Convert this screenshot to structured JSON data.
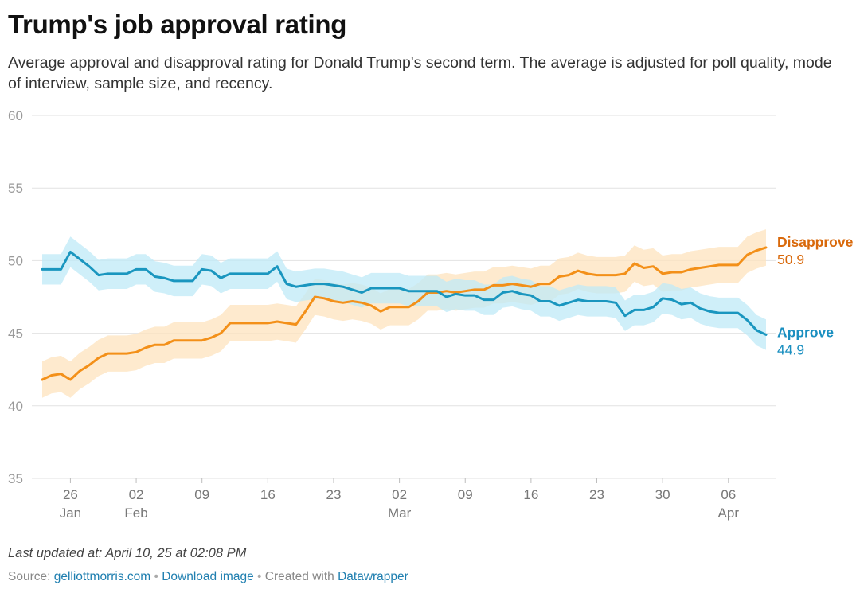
{
  "header": {
    "title": "Trump's job approval rating",
    "subtitle": "Average approval and disapproval rating for Donald Trump's second term. The average is adjusted for poll quality, mode of interview, sample size, and recency."
  },
  "footer": {
    "last_updated": "Last updated at: April 10, 25 at 02:08 PM",
    "source_prefix": "Source: ",
    "source_link": "gelliottmorris.com",
    "separator": " • ",
    "download_link": "Download image",
    "created_with": "Created with ",
    "datawrapper_link": "Datawrapper"
  },
  "chart_data": {
    "type": "line",
    "title": "Trump's job approval rating",
    "ylim": [
      35,
      60
    ],
    "yticks": [
      35,
      40,
      45,
      50,
      55,
      60
    ],
    "grid": true,
    "x_start": "2025-01-23",
    "x_end": "2025-04-10",
    "xticks": [
      {
        "date": "2025-01-26",
        "label": "26",
        "sublabel": "Jan"
      },
      {
        "date": "2025-02-02",
        "label": "02",
        "sublabel": "Feb"
      },
      {
        "date": "2025-02-09",
        "label": "09",
        "sublabel": ""
      },
      {
        "date": "2025-02-16",
        "label": "16",
        "sublabel": ""
      },
      {
        "date": "2025-02-23",
        "label": "23",
        "sublabel": ""
      },
      {
        "date": "2025-03-02",
        "label": "02",
        "sublabel": "Mar"
      },
      {
        "date": "2025-03-09",
        "label": "09",
        "sublabel": ""
      },
      {
        "date": "2025-03-16",
        "label": "16",
        "sublabel": ""
      },
      {
        "date": "2025-03-23",
        "label": "23",
        "sublabel": ""
      },
      {
        "date": "2025-03-30",
        "label": "30",
        "sublabel": ""
      },
      {
        "date": "2025-04-06",
        "label": "06",
        "sublabel": "Apr"
      }
    ],
    "colors": {
      "disapprove_line": "#f39019",
      "disapprove_band": "#fde3bd",
      "disapprove_label": "#d9690b",
      "approve_line": "#1a96bf",
      "approve_band": "#bfe9f7",
      "approve_label": "#1a8fc0"
    },
    "series": [
      {
        "name": "Disapprove",
        "final_label": "50.9",
        "band_width": 1.25,
        "points": [
          [
            "2025-01-23",
            41.8
          ],
          [
            "2025-01-24",
            42.1
          ],
          [
            "2025-01-25",
            42.2
          ],
          [
            "2025-01-26",
            41.8
          ],
          [
            "2025-01-27",
            42.4
          ],
          [
            "2025-01-28",
            42.8
          ],
          [
            "2025-01-29",
            43.3
          ],
          [
            "2025-01-30",
            43.6
          ],
          [
            "2025-01-31",
            43.6
          ],
          [
            "2025-02-01",
            43.6
          ],
          [
            "2025-02-02",
            43.7
          ],
          [
            "2025-02-03",
            44.0
          ],
          [
            "2025-02-04",
            44.2
          ],
          [
            "2025-02-05",
            44.2
          ],
          [
            "2025-02-06",
            44.5
          ],
          [
            "2025-02-07",
            44.5
          ],
          [
            "2025-02-08",
            44.5
          ],
          [
            "2025-02-09",
            44.5
          ],
          [
            "2025-02-10",
            44.7
          ],
          [
            "2025-02-11",
            45.0
          ],
          [
            "2025-02-12",
            45.7
          ],
          [
            "2025-02-13",
            45.7
          ],
          [
            "2025-02-14",
            45.7
          ],
          [
            "2025-02-15",
            45.7
          ],
          [
            "2025-02-16",
            45.7
          ],
          [
            "2025-02-17",
            45.8
          ],
          [
            "2025-02-18",
            45.7
          ],
          [
            "2025-02-19",
            45.6
          ],
          [
            "2025-02-20",
            46.5
          ],
          [
            "2025-02-21",
            47.5
          ],
          [
            "2025-02-22",
            47.4
          ],
          [
            "2025-02-23",
            47.2
          ],
          [
            "2025-02-24",
            47.1
          ],
          [
            "2025-02-25",
            47.2
          ],
          [
            "2025-02-26",
            47.1
          ],
          [
            "2025-02-27",
            46.9
          ],
          [
            "2025-02-28",
            46.5
          ],
          [
            "2025-03-01",
            46.8
          ],
          [
            "2025-03-02",
            46.8
          ],
          [
            "2025-03-03",
            46.8
          ],
          [
            "2025-03-04",
            47.2
          ],
          [
            "2025-03-05",
            47.8
          ],
          [
            "2025-03-06",
            47.8
          ],
          [
            "2025-03-07",
            47.9
          ],
          [
            "2025-03-08",
            47.8
          ],
          [
            "2025-03-09",
            47.9
          ],
          [
            "2025-03-10",
            48.0
          ],
          [
            "2025-03-11",
            48.0
          ],
          [
            "2025-03-12",
            48.3
          ],
          [
            "2025-03-13",
            48.3
          ],
          [
            "2025-03-14",
            48.4
          ],
          [
            "2025-03-15",
            48.3
          ],
          [
            "2025-03-16",
            48.2
          ],
          [
            "2025-03-17",
            48.4
          ],
          [
            "2025-03-18",
            48.4
          ],
          [
            "2025-03-19",
            48.9
          ],
          [
            "2025-03-20",
            49.0
          ],
          [
            "2025-03-21",
            49.3
          ],
          [
            "2025-03-22",
            49.1
          ],
          [
            "2025-03-23",
            49.0
          ],
          [
            "2025-03-24",
            49.0
          ],
          [
            "2025-03-25",
            49.0
          ],
          [
            "2025-03-26",
            49.1
          ],
          [
            "2025-03-27",
            49.8
          ],
          [
            "2025-03-28",
            49.5
          ],
          [
            "2025-03-29",
            49.6
          ],
          [
            "2025-03-30",
            49.1
          ],
          [
            "2025-03-31",
            49.2
          ],
          [
            "2025-04-01",
            49.2
          ],
          [
            "2025-04-02",
            49.4
          ],
          [
            "2025-04-03",
            49.5
          ],
          [
            "2025-04-04",
            49.6
          ],
          [
            "2025-04-05",
            49.7
          ],
          [
            "2025-04-06",
            49.7
          ],
          [
            "2025-04-07",
            49.7
          ],
          [
            "2025-04-08",
            50.4
          ],
          [
            "2025-04-09",
            50.7
          ],
          [
            "2025-04-10",
            50.9
          ]
        ]
      },
      {
        "name": "Approve",
        "final_label": "44.9",
        "band_width": 1.05,
        "points": [
          [
            "2025-01-23",
            49.4
          ],
          [
            "2025-01-24",
            49.4
          ],
          [
            "2025-01-25",
            49.4
          ],
          [
            "2025-01-26",
            50.6
          ],
          [
            "2025-01-27",
            50.1
          ],
          [
            "2025-01-28",
            49.6
          ],
          [
            "2025-01-29",
            49.0
          ],
          [
            "2025-01-30",
            49.1
          ],
          [
            "2025-01-31",
            49.1
          ],
          [
            "2025-02-01",
            49.1
          ],
          [
            "2025-02-02",
            49.4
          ],
          [
            "2025-02-03",
            49.4
          ],
          [
            "2025-02-04",
            48.9
          ],
          [
            "2025-02-05",
            48.8
          ],
          [
            "2025-02-06",
            48.6
          ],
          [
            "2025-02-07",
            48.6
          ],
          [
            "2025-02-08",
            48.6
          ],
          [
            "2025-02-09",
            49.4
          ],
          [
            "2025-02-10",
            49.3
          ],
          [
            "2025-02-11",
            48.8
          ],
          [
            "2025-02-12",
            49.1
          ],
          [
            "2025-02-13",
            49.1
          ],
          [
            "2025-02-14",
            49.1
          ],
          [
            "2025-02-15",
            49.1
          ],
          [
            "2025-02-16",
            49.1
          ],
          [
            "2025-02-17",
            49.6
          ],
          [
            "2025-02-18",
            48.4
          ],
          [
            "2025-02-19",
            48.2
          ],
          [
            "2025-02-20",
            48.3
          ],
          [
            "2025-02-21",
            48.4
          ],
          [
            "2025-02-22",
            48.4
          ],
          [
            "2025-02-23",
            48.3
          ],
          [
            "2025-02-24",
            48.2
          ],
          [
            "2025-02-25",
            48.0
          ],
          [
            "2025-02-26",
            47.8
          ],
          [
            "2025-02-27",
            48.1
          ],
          [
            "2025-02-28",
            48.1
          ],
          [
            "2025-03-01",
            48.1
          ],
          [
            "2025-03-02",
            48.1
          ],
          [
            "2025-03-03",
            47.9
          ],
          [
            "2025-03-04",
            47.9
          ],
          [
            "2025-03-05",
            47.9
          ],
          [
            "2025-03-06",
            47.9
          ],
          [
            "2025-03-07",
            47.5
          ],
          [
            "2025-03-08",
            47.7
          ],
          [
            "2025-03-09",
            47.6
          ],
          [
            "2025-03-10",
            47.6
          ],
          [
            "2025-03-11",
            47.3
          ],
          [
            "2025-03-12",
            47.3
          ],
          [
            "2025-03-13",
            47.8
          ],
          [
            "2025-03-14",
            47.9
          ],
          [
            "2025-03-15",
            47.7
          ],
          [
            "2025-03-16",
            47.6
          ],
          [
            "2025-03-17",
            47.2
          ],
          [
            "2025-03-18",
            47.2
          ],
          [
            "2025-03-19",
            46.9
          ],
          [
            "2025-03-20",
            47.1
          ],
          [
            "2025-03-21",
            47.3
          ],
          [
            "2025-03-22",
            47.2
          ],
          [
            "2025-03-23",
            47.2
          ],
          [
            "2025-03-24",
            47.2
          ],
          [
            "2025-03-25",
            47.1
          ],
          [
            "2025-03-26",
            46.2
          ],
          [
            "2025-03-27",
            46.6
          ],
          [
            "2025-03-28",
            46.6
          ],
          [
            "2025-03-29",
            46.8
          ],
          [
            "2025-03-30",
            47.4
          ],
          [
            "2025-03-31",
            47.3
          ],
          [
            "2025-04-01",
            47.0
          ],
          [
            "2025-04-02",
            47.1
          ],
          [
            "2025-04-03",
            46.7
          ],
          [
            "2025-04-04",
            46.5
          ],
          [
            "2025-04-05",
            46.4
          ],
          [
            "2025-04-06",
            46.4
          ],
          [
            "2025-04-07",
            46.4
          ],
          [
            "2025-04-08",
            45.9
          ],
          [
            "2025-04-09",
            45.2
          ],
          [
            "2025-04-10",
            44.9
          ]
        ]
      }
    ]
  }
}
